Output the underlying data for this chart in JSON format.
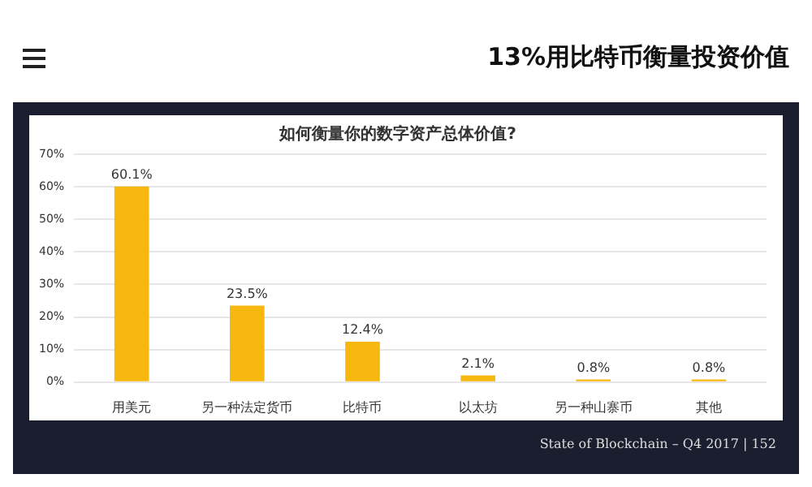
{
  "chart_data": {
    "type": "bar",
    "title": "如何衡量你的数字资产总体价值?",
    "categories": [
      "用美元",
      "另一种法定货币",
      "比特币",
      "以太坊",
      "另一种山寨币",
      "其他"
    ],
    "values": [
      60.1,
      23.5,
      12.4,
      2.1,
      0.8,
      0.8
    ],
    "color": "#f6b80f",
    "ylim": [
      0,
      70
    ],
    "yticks": [
      {
        "value": 0,
        "label": "0%"
      },
      {
        "value": 10,
        "label": "10%"
      },
      {
        "value": 20,
        "label": "20%"
      },
      {
        "value": 30,
        "label": "30%"
      },
      {
        "value": 40,
        "label": "40%"
      },
      {
        "value": 50,
        "label": "50%"
      },
      {
        "value": 60,
        "label": "60%"
      },
      {
        "value": 70,
        "label": "70%"
      }
    ],
    "value_labels": [
      "60.1%",
      "23.5%",
      "12.4%",
      "2.1%",
      "0.8%",
      "0.8%"
    ],
    "grid": "y",
    "legend": false,
    "annotations": [
      "13%用比特币衡量投资价值",
      "State of Blockchain – Q4 2017 | 152"
    ]
  }
}
